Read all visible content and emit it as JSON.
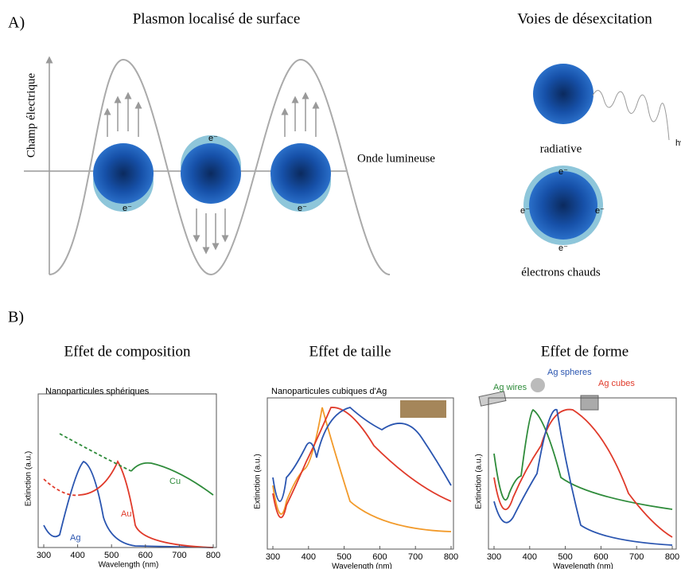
{
  "panel_a": {
    "label": "A)",
    "title_left": "Plasmon localisé de surface",
    "title_right": "Voies de désexcitation",
    "y_axis": "Champ électrique",
    "x_axis": "Onde lumineuse",
    "electron": "e⁻",
    "photon": "hν",
    "radiative": "radiative",
    "hot_electrons": "électrons chauds"
  },
  "panel_b": {
    "label": "B)",
    "plots": [
      {
        "title": "Effet de composition",
        "subtitle": "Nanoparticules sphériques",
        "xlabel": "Wavelength (nm)",
        "ylabel": "Extinction (a.u.)",
        "xlim": [
          300,
          800
        ],
        "xticks": [
          300,
          400,
          500,
          600,
          700,
          800
        ],
        "labels": [
          "Ag",
          "Au",
          "Cu"
        ]
      },
      {
        "title": "Effet de taille",
        "subtitle": "Nanoparticules cubiques d'Ag",
        "xlabel": "Wavelength (nm)",
        "ylabel": "Extinction (a.u.)",
        "xlim": [
          300,
          800
        ],
        "xticks": [
          300,
          400,
          500,
          600,
          700,
          800
        ],
        "labels": []
      },
      {
        "title": "Effet de forme",
        "subtitle": "",
        "xlabel": "Wavelength (nm)",
        "ylabel": "Extinction (a.u.)",
        "xlim": [
          300,
          800
        ],
        "xticks": [
          300,
          400,
          500,
          600,
          700,
          800
        ],
        "labels": [
          "Ag wires",
          "Ag spheres",
          "Ag cubes"
        ]
      }
    ]
  }
}
